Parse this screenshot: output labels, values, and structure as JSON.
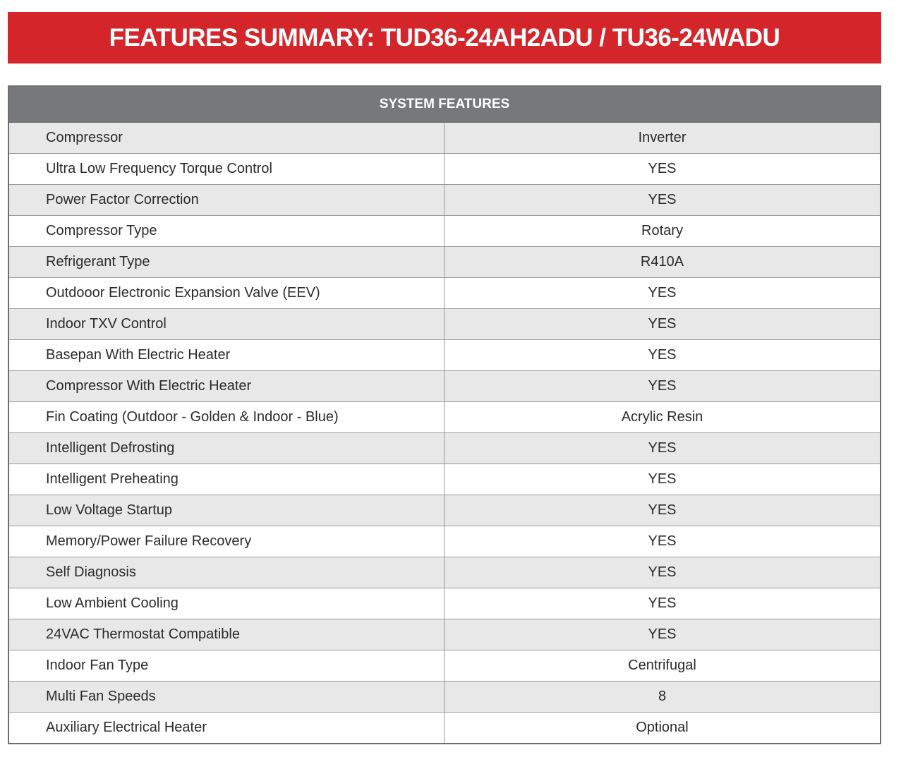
{
  "banner": {
    "title": "FEATURES SUMMARY: TUD36-24AH2ADU / TU36-24WADU"
  },
  "table": {
    "header": "SYSTEM FEATURES",
    "rows": [
      {
        "feature": "Compressor",
        "value": "Inverter"
      },
      {
        "feature": "Ultra Low Frequency Torque Control",
        "value": "YES"
      },
      {
        "feature": "Power Factor Correction",
        "value": "YES"
      },
      {
        "feature": "Compressor Type",
        "value": "Rotary"
      },
      {
        "feature": "Refrigerant Type",
        "value": "R410A"
      },
      {
        "feature": "Outdooor Electronic Expansion Valve (EEV)",
        "value": "YES"
      },
      {
        "feature": "Indoor TXV Control",
        "value": "YES"
      },
      {
        "feature": "Basepan With Electric Heater",
        "value": "YES"
      },
      {
        "feature": "Compressor With Electric Heater",
        "value": "YES"
      },
      {
        "feature": "Fin Coating (Outdoor - Golden & Indoor - Blue)",
        "value": "Acrylic Resin"
      },
      {
        "feature": "Intelligent Defrosting",
        "value": "YES"
      },
      {
        "feature": "Intelligent Preheating",
        "value": "YES"
      },
      {
        "feature": "Low Voltage Startup",
        "value": "YES"
      },
      {
        "feature": "Memory/Power Failure Recovery",
        "value": "YES"
      },
      {
        "feature": "Self Diagnosis",
        "value": "YES"
      },
      {
        "feature": "Low Ambient Cooling",
        "value": "YES"
      },
      {
        "feature": "24VAC Thermostat Compatible",
        "value": "YES"
      },
      {
        "feature": "Indoor Fan Type",
        "value": "Centrifugal"
      },
      {
        "feature": "Multi Fan Speeds",
        "value": "8"
      },
      {
        "feature": "Auxiliary Electrical Heater",
        "value": "Optional"
      }
    ]
  },
  "colors": {
    "banner": "#d3252a",
    "header": "#77787b",
    "stripe": "#e8e8e9"
  }
}
